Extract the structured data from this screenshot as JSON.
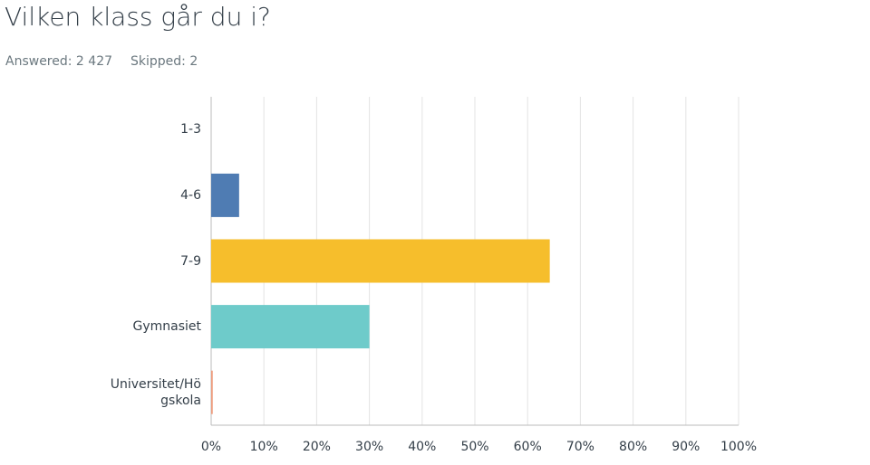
{
  "chart_data": {
    "type": "hbar",
    "title": "Vilken klass går du i?",
    "answered": "Answered: 2 427",
    "skipped": "Skipped: 2",
    "categories": [
      "1-3",
      "4-6",
      "7-9",
      "Gymnasiet",
      "Universitet/Högskola"
    ],
    "values": [
      0,
      5.3,
      64.2,
      30,
      0.3
    ],
    "colors": [
      "#e87b5a",
      "#4f7cb3",
      "#f6be2c",
      "#6ecbca",
      "#ee9b7c"
    ],
    "xlim": [
      0,
      100
    ],
    "xticks": [
      {
        "value": 0,
        "label": "0%"
      },
      {
        "value": 10,
        "label": "10%"
      },
      {
        "value": 20,
        "label": "20%"
      },
      {
        "value": 30,
        "label": "30%"
      },
      {
        "value": 40,
        "label": "40%"
      },
      {
        "value": 50,
        "label": "50%"
      },
      {
        "value": 60,
        "label": "60%"
      },
      {
        "value": 70,
        "label": "70%"
      },
      {
        "value": 80,
        "label": "80%"
      },
      {
        "value": 90,
        "label": "90%"
      },
      {
        "value": 100,
        "label": "100%"
      }
    ],
    "grid": true
  }
}
